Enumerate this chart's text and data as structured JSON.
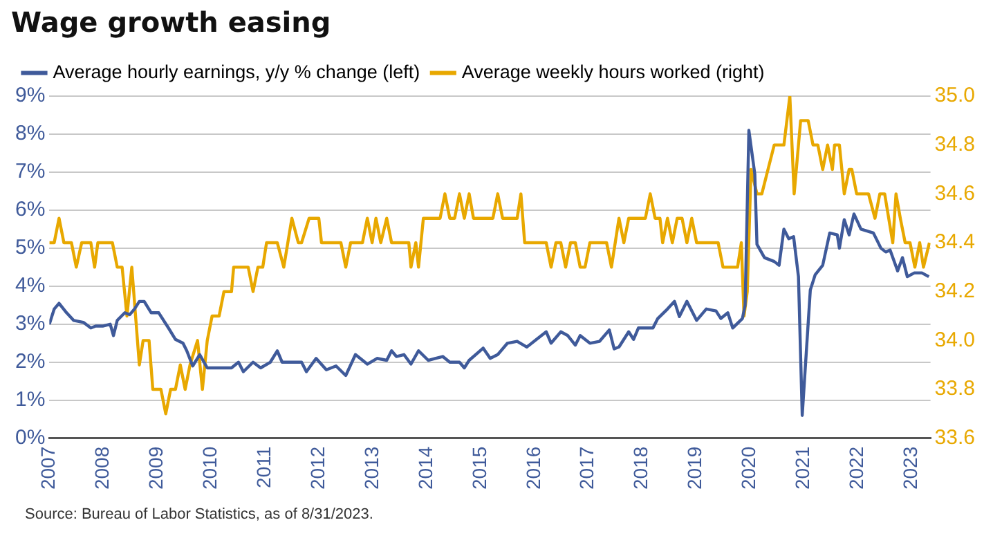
{
  "chart_data": {
    "type": "line",
    "title": "Wage growth easing",
    "xlim": [
      2007,
      2023.35
    ],
    "xticks": [
      2007,
      2008,
      2009,
      2010,
      2011,
      2012,
      2013,
      2014,
      2015,
      2016,
      2017,
      2018,
      2019,
      2020,
      2021,
      2022,
      2023
    ],
    "ylim": [
      0,
      9
    ],
    "yticks": [
      {
        "value": 0,
        "label": "0%"
      },
      {
        "value": 1,
        "label": "1%"
      },
      {
        "value": 2,
        "label": "2%"
      },
      {
        "value": 3,
        "label": "3%"
      },
      {
        "value": 4,
        "label": "4%"
      },
      {
        "value": 5,
        "label": "5%"
      },
      {
        "value": 6,
        "label": "6%"
      },
      {
        "value": 7,
        "label": "7%"
      },
      {
        "value": 8,
        "label": "8%"
      },
      {
        "value": 9,
        "label": "9%"
      }
    ],
    "y2lim": [
      33.6,
      35
    ],
    "y2ticks": [
      {
        "value": 33.6,
        "label": "33.6"
      },
      {
        "value": 33.8,
        "label": "33.8"
      },
      {
        "value": 34,
        "label": "34.0"
      },
      {
        "value": 34.2,
        "label": "34.2"
      },
      {
        "value": 34.4,
        "label": "34.4"
      },
      {
        "value": 34.6,
        "label": "34.6"
      },
      {
        "value": 34.8,
        "label": "34.8"
      },
      {
        "value": 35,
        "label": "35.0"
      }
    ],
    "grid": "y",
    "legend": "top left",
    "marker": "none",
    "line_style": "solid",
    "series": [
      {
        "name": "Average hourly earnings, y/y % change (left)",
        "color": "#3f5a9a",
        "axis": "y",
        "x": [
          2007.0,
          2007.09,
          2007.18,
          2007.32,
          2007.45,
          2007.63,
          2007.77,
          2007.86,
          2007.99,
          2008.13,
          2008.19,
          2008.26,
          2008.4,
          2008.49,
          2008.58,
          2008.67,
          2008.76,
          2008.89,
          2009.03,
          2009.21,
          2009.34,
          2009.48,
          2009.55,
          2009.66,
          2009.79,
          2009.93,
          2010.11,
          2010.38,
          2010.51,
          2010.6,
          2010.78,
          2010.92,
          2011.1,
          2011.23,
          2011.32,
          2011.68,
          2011.77,
          2011.95,
          2012.14,
          2012.32,
          2012.5,
          2012.68,
          2012.9,
          2013.08,
          2013.26,
          2013.35,
          2013.44,
          2013.58,
          2013.71,
          2013.85,
          2014.03,
          2014.16,
          2014.3,
          2014.43,
          2014.61,
          2014.7,
          2014.79,
          2015.05,
          2015.18,
          2015.32,
          2015.5,
          2015.68,
          2015.86,
          2016.04,
          2016.22,
          2016.31,
          2016.49,
          2016.62,
          2016.76,
          2016.85,
          2017.03,
          2017.21,
          2017.39,
          2017.48,
          2017.57,
          2017.75,
          2017.84,
          2017.93,
          2018.2,
          2018.29,
          2018.47,
          2018.6,
          2018.69,
          2018.83,
          2019.01,
          2019.19,
          2019.37,
          2019.46,
          2019.59,
          2019.68,
          2019.86,
          2019.91,
          2019.98,
          2020.09,
          2020.13,
          2020.27,
          2020.45,
          2020.54,
          2020.63,
          2020.72,
          2020.81,
          2020.9,
          2020.97,
          2021.12,
          2021.21,
          2021.35,
          2021.48,
          2021.62,
          2021.66,
          2021.75,
          2021.84,
          2021.93,
          2022.06,
          2022.29,
          2022.43,
          2022.52,
          2022.6,
          2022.74,
          2022.83,
          2022.92,
          2023.05,
          2023.19,
          2023.32
        ],
        "values": [
          3.0,
          3.4,
          3.55,
          3.3,
          3.1,
          3.05,
          2.9,
          2.95,
          2.95,
          3.0,
          2.7,
          3.1,
          3.3,
          3.25,
          3.4,
          3.6,
          3.6,
          3.3,
          3.3,
          2.9,
          2.6,
          2.5,
          2.3,
          1.9,
          2.2,
          1.85,
          1.85,
          1.85,
          2.0,
          1.75,
          2.0,
          1.85,
          2.0,
          2.3,
          2.0,
          2.0,
          1.75,
          2.1,
          1.8,
          1.9,
          1.65,
          2.2,
          1.95,
          2.1,
          2.05,
          2.3,
          2.15,
          2.2,
          1.95,
          2.3,
          2.05,
          2.1,
          2.15,
          2.0,
          2.0,
          1.85,
          2.05,
          2.37,
          2.1,
          2.2,
          2.5,
          2.55,
          2.4,
          2.6,
          2.8,
          2.5,
          2.8,
          2.7,
          2.45,
          2.7,
          2.5,
          2.55,
          2.85,
          2.35,
          2.4,
          2.8,
          2.6,
          2.9,
          2.9,
          3.15,
          3.4,
          3.6,
          3.2,
          3.6,
          3.1,
          3.4,
          3.35,
          3.15,
          3.3,
          2.9,
          3.15,
          3.5,
          8.1,
          6.95,
          5.1,
          4.75,
          4.65,
          4.55,
          5.5,
          5.25,
          5.3,
          4.25,
          0.6,
          3.9,
          4.3,
          4.55,
          5.4,
          5.35,
          5.0,
          5.75,
          5.35,
          5.9,
          5.5,
          5.4,
          5.0,
          4.9,
          4.95,
          4.4,
          4.75,
          4.25,
          4.35,
          4.35,
          4.25
        ]
      },
      {
        "name": "Average weekly hours worked (right)",
        "color": "#e8a800",
        "axis": "y2",
        "x": [
          2007.0,
          2007.09,
          2007.18,
          2007.27,
          2007.41,
          2007.5,
          2007.6,
          2007.77,
          2007.84,
          2007.9,
          2008.17,
          2008.26,
          2008.35,
          2008.44,
          2008.53,
          2008.67,
          2008.74,
          2008.85,
          2008.92,
          2009.07,
          2009.16,
          2009.25,
          2009.34,
          2009.43,
          2009.52,
          2009.61,
          2009.75,
          2009.84,
          2009.93,
          2010.02,
          2010.15,
          2010.24,
          2010.38,
          2010.42,
          2010.69,
          2010.78,
          2010.87,
          2010.96,
          2011.03,
          2011.23,
          2011.35,
          2011.5,
          2011.62,
          2011.68,
          2011.82,
          2012.0,
          2012.05,
          2012.41,
          2012.5,
          2012.59,
          2012.81,
          2012.9,
          2012.99,
          2013.06,
          2013.15,
          2013.26,
          2013.35,
          2013.67,
          2013.71,
          2013.8,
          2013.85,
          2013.94,
          2014.25,
          2014.34,
          2014.43,
          2014.52,
          2014.61,
          2014.7,
          2014.79,
          2014.87,
          2015.23,
          2015.32,
          2015.41,
          2015.68,
          2015.75,
          2015.82,
          2016.22,
          2016.31,
          2016.4,
          2016.49,
          2016.58,
          2016.67,
          2016.76,
          2016.85,
          2016.94,
          2017.03,
          2017.34,
          2017.43,
          2017.57,
          2017.66,
          2017.75,
          2018.06,
          2018.15,
          2018.24,
          2018.33,
          2018.38,
          2018.47,
          2018.56,
          2018.65,
          2018.74,
          2018.83,
          2018.92,
          2019.01,
          2019.41,
          2019.5,
          2019.77,
          2019.84,
          2019.89,
          2019.95,
          2020.02,
          2020.13,
          2020.22,
          2020.45,
          2020.63,
          2020.74,
          2020.82,
          2020.94,
          2021.08,
          2021.17,
          2021.26,
          2021.35,
          2021.44,
          2021.53,
          2021.57,
          2021.66,
          2021.75,
          2021.84,
          2021.89,
          2021.98,
          2022.2,
          2022.32,
          2022.41,
          2022.5,
          2022.65,
          2022.71,
          2022.79,
          2022.88,
          2022.97,
          2023.06,
          2023.15,
          2023.22,
          2023.33
        ],
        "values": [
          34.4,
          34.4,
          34.5,
          34.4,
          34.4,
          34.3,
          34.4,
          34.4,
          34.3,
          34.4,
          34.4,
          34.3,
          34.3,
          34.1,
          34.3,
          33.9,
          34.0,
          34.0,
          33.8,
          33.8,
          33.7,
          33.8,
          33.8,
          33.9,
          33.8,
          33.9,
          34.0,
          33.8,
          34.0,
          34.1,
          34.1,
          34.2,
          34.2,
          34.3,
          34.3,
          34.2,
          34.3,
          34.3,
          34.4,
          34.4,
          34.3,
          34.5,
          34.4,
          34.4,
          34.5,
          34.5,
          34.4,
          34.4,
          34.3,
          34.4,
          34.4,
          34.5,
          34.4,
          34.5,
          34.4,
          34.5,
          34.4,
          34.4,
          34.3,
          34.4,
          34.3,
          34.5,
          34.5,
          34.6,
          34.5,
          34.5,
          34.6,
          34.5,
          34.6,
          34.5,
          34.5,
          34.6,
          34.5,
          34.5,
          34.6,
          34.4,
          34.4,
          34.3,
          34.4,
          34.4,
          34.3,
          34.4,
          34.4,
          34.3,
          34.3,
          34.4,
          34.4,
          34.3,
          34.5,
          34.4,
          34.5,
          34.5,
          34.6,
          34.5,
          34.5,
          34.4,
          34.5,
          34.4,
          34.5,
          34.5,
          34.4,
          34.5,
          34.4,
          34.4,
          34.3,
          34.3,
          34.4,
          34.1,
          34.2,
          34.7,
          34.6,
          34.6,
          34.8,
          34.8,
          35.0,
          34.6,
          34.9,
          34.9,
          34.8,
          34.8,
          34.7,
          34.8,
          34.7,
          34.8,
          34.8,
          34.6,
          34.7,
          34.7,
          34.6,
          34.6,
          34.5,
          34.6,
          34.6,
          34.4,
          34.6,
          34.5,
          34.4,
          34.4,
          34.3,
          34.4,
          34.3,
          34.4
        ]
      }
    ],
    "annotations": [
      "Source: Bureau of Labor Statistics, as of 8/31/2023."
    ]
  }
}
